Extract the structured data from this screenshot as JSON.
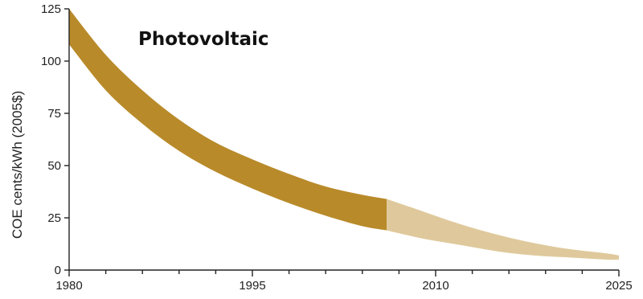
{
  "chart_data": {
    "type": "area",
    "title": "Photovoltaic",
    "xlabel": "",
    "ylabel": "COE cents/kWh (2005$)",
    "xlim": [
      1980,
      2025
    ],
    "ylim": [
      0,
      125
    ],
    "x_ticks": [
      1980,
      1995,
      2010,
      2025
    ],
    "y_ticks": [
      0,
      25,
      50,
      75,
      100,
      125
    ],
    "grid": false,
    "series": [
      {
        "color": "#b88a2a",
        "x": [
          1980,
          1983,
          1986,
          1989,
          1992,
          1995,
          1998,
          2001,
          2004,
          2006
        ],
        "upper": [
          125,
          103,
          86,
          72,
          61,
          53,
          46,
          40,
          36,
          34
        ],
        "lower": [
          108,
          86,
          70,
          57,
          47,
          39,
          32,
          26,
          21,
          19
        ]
      },
      {
        "color": "#dfc99c",
        "x": [
          2006,
          2009,
          2012,
          2015,
          2018,
          2021,
          2024,
          2025
        ],
        "upper": [
          34,
          28,
          22,
          17,
          13,
          10,
          8,
          7
        ],
        "lower": [
          19,
          15,
          12,
          9,
          7,
          6,
          5,
          5
        ]
      }
    ]
  }
}
